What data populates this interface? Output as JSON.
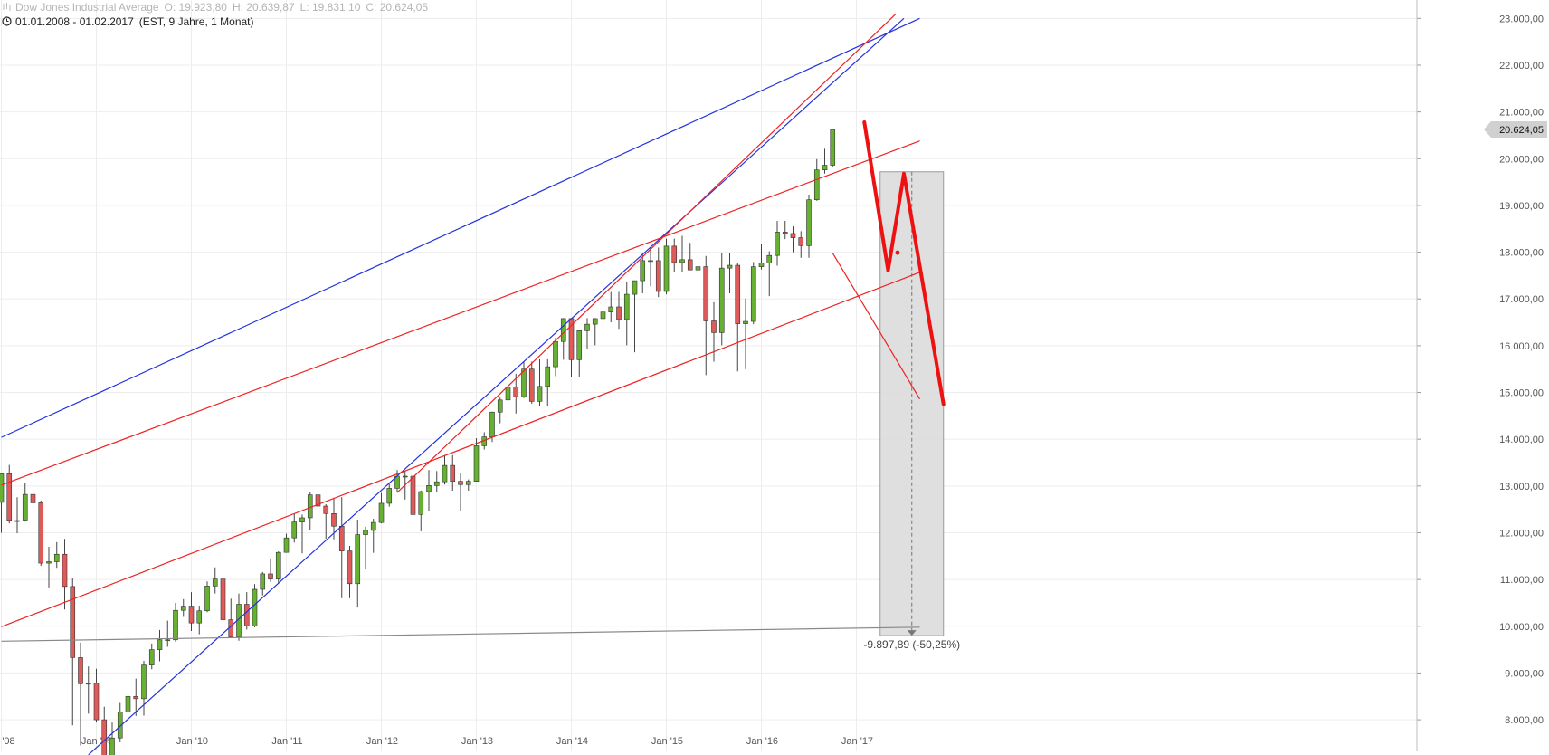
{
  "header": {
    "instrument": "Dow Jones Industrial Average",
    "open": "O: 19.923,80",
    "high": "H: 20.639,87",
    "low": "L: 19.831,10",
    "close": "C: 20.624,05",
    "range": "01.01.2008 - 01.02.2017",
    "meta": "(EST, 9 Jahre, 1 Monat)"
  },
  "chart_data": {
    "type": "candlestick",
    "xlabel": "",
    "ylabel": "",
    "grid": true,
    "x_tick_labels": [
      "'08",
      "Jan '09",
      "Jan '10",
      "Jan '11",
      "Jan '12",
      "Jan '13",
      "Jan '14",
      "Jan '15",
      "Jan '16",
      "Jan '17"
    ],
    "y_tick_labels": [
      "8.000,00",
      "9.000,00",
      "10.000,00",
      "11.000,00",
      "12.000,00",
      "13.000,00",
      "14.000,00",
      "15.000,00",
      "16.000,00",
      "17.000,00",
      "18.000,00",
      "19.000,00",
      "20.000,00",
      "21.000,00",
      "22.000,00",
      "23.000,00"
    ],
    "ylim": [
      7750,
      23200
    ],
    "last_price": 20624.05,
    "last_price_label": "20.624,05",
    "measurement_label": "-9.897,89 (-50,25%)",
    "up_color": "#66b032",
    "down_color": "#e05a5a",
    "candles": [
      [
        12650,
        13280,
        12000,
        13260
      ],
      [
        13260,
        13450,
        12200,
        12265
      ],
      [
        12260,
        12760,
        11990,
        12260
      ],
      [
        12270,
        13060,
        12240,
        12820
      ],
      [
        12820,
        13140,
        12580,
        12640
      ],
      [
        12640,
        12690,
        11290,
        11350
      ],
      [
        11350,
        11700,
        10830,
        11380
      ],
      [
        11380,
        11800,
        11250,
        11540
      ],
      [
        11540,
        11870,
        10360,
        10850
      ],
      [
        10850,
        11030,
        7880,
        9330
      ],
      [
        9330,
        9650,
        7450,
        8770
      ],
      [
        8770,
        9140,
        8130,
        8780
      ],
      [
        8780,
        9090,
        7940,
        8000
      ],
      [
        8000,
        8280,
        6460,
        7060
      ],
      [
        7060,
        7940,
        6470,
        7610
      ],
      [
        7610,
        8360,
        7520,
        8170
      ],
      [
        8170,
        8880,
        8160,
        8500
      ],
      [
        8500,
        8880,
        8080,
        8450
      ],
      [
        8450,
        9260,
        8090,
        9170
      ],
      [
        9170,
        9630,
        9080,
        9500
      ],
      [
        9500,
        9920,
        9250,
        9710
      ],
      [
        9710,
        10120,
        9560,
        9710
      ],
      [
        9710,
        10500,
        9670,
        10340
      ],
      [
        10340,
        10580,
        10200,
        10430
      ],
      [
        10430,
        10730,
        9900,
        10070
      ],
      [
        10070,
        10440,
        9830,
        10330
      ],
      [
        10330,
        10960,
        10300,
        10860
      ],
      [
        10860,
        11260,
        10700,
        11010
      ],
      [
        11010,
        11300,
        9760,
        10140
      ],
      [
        10140,
        10590,
        9760,
        9770
      ],
      [
        9770,
        10700,
        9690,
        10470
      ],
      [
        10470,
        10730,
        9930,
        10010
      ],
      [
        10010,
        10900,
        9980,
        10790
      ],
      [
        10790,
        11160,
        10660,
        11120
      ],
      [
        11120,
        11450,
        10950,
        11010
      ],
      [
        11010,
        11600,
        10930,
        11580
      ],
      [
        11580,
        11980,
        11580,
        11890
      ],
      [
        11890,
        12400,
        11790,
        12230
      ],
      [
        12230,
        12390,
        11560,
        12320
      ],
      [
        12320,
        12880,
        12060,
        12810
      ],
      [
        12810,
        12880,
        12110,
        12570
      ],
      [
        12570,
        12610,
        11870,
        12410
      ],
      [
        12410,
        12750,
        11860,
        12140
      ],
      [
        12140,
        12760,
        10600,
        11610
      ],
      [
        11610,
        11720,
        10600,
        10910
      ],
      [
        10910,
        12280,
        10400,
        11960
      ],
      [
        11960,
        12130,
        11230,
        12050
      ],
      [
        12050,
        12300,
        11570,
        12220
      ],
      [
        12220,
        12850,
        12200,
        12630
      ],
      [
        12630,
        13050,
        12560,
        12950
      ],
      [
        12950,
        13340,
        12880,
        13210
      ],
      [
        13210,
        13330,
        12710,
        13210
      ],
      [
        13210,
        13340,
        12030,
        12390
      ],
      [
        12390,
        12900,
        12030,
        12880
      ],
      [
        12880,
        13340,
        12470,
        13010
      ],
      [
        13010,
        13320,
        12880,
        13090
      ],
      [
        13090,
        13660,
        13030,
        13440
      ],
      [
        13440,
        13660,
        12900,
        13100
      ],
      [
        13100,
        13280,
        12470,
        13030
      ],
      [
        13030,
        13140,
        12900,
        13100
      ],
      [
        13100,
        14020,
        13100,
        13860
      ],
      [
        13860,
        14150,
        13780,
        14050
      ],
      [
        14050,
        14590,
        13940,
        14580
      ],
      [
        14580,
        14890,
        14340,
        14840
      ],
      [
        14840,
        15540,
        14710,
        15120
      ],
      [
        15120,
        15400,
        14550,
        14910
      ],
      [
        14910,
        15660,
        14880,
        15500
      ],
      [
        15500,
        15660,
        14760,
        14810
      ],
      [
        14810,
        15710,
        14720,
        15130
      ],
      [
        15130,
        15710,
        14720,
        15550
      ],
      [
        15550,
        16170,
        15350,
        16090
      ],
      [
        16090,
        16590,
        15700,
        16580
      ],
      [
        16580,
        16590,
        15340,
        15700
      ],
      [
        15700,
        16320,
        15340,
        16320
      ],
      [
        16320,
        16590,
        15940,
        16460
      ],
      [
        16460,
        16590,
        16010,
        16580
      ],
      [
        16580,
        16740,
        16330,
        16720
      ],
      [
        16720,
        17150,
        16500,
        16830
      ],
      [
        16830,
        17150,
        16360,
        16560
      ],
      [
        16560,
        17370,
        16010,
        17100
      ],
      [
        17100,
        17280,
        15860,
        17390
      ],
      [
        17390,
        17990,
        17120,
        17820
      ],
      [
        17820,
        18110,
        17270,
        17820
      ],
      [
        17820,
        18100,
        17040,
        17160
      ],
      [
        17160,
        18290,
        17100,
        18130
      ],
      [
        18130,
        18290,
        17580,
        17780
      ],
      [
        17780,
        18350,
        17580,
        17840
      ],
      [
        17840,
        18200,
        17640,
        17620
      ],
      [
        17620,
        18130,
        17470,
        17690
      ],
      [
        17690,
        17920,
        15370,
        16530
      ],
      [
        16530,
        16930,
        15660,
        16280
      ],
      [
        16280,
        17980,
        16010,
        17660
      ],
      [
        17660,
        17980,
        17120,
        17720
      ],
      [
        17720,
        17770,
        15450,
        16470
      ],
      [
        16470,
        17010,
        15500,
        16520
      ],
      [
        16520,
        17790,
        16460,
        17690
      ],
      [
        17690,
        18170,
        17630,
        17770
      ],
      [
        17770,
        18020,
        17060,
        17930
      ],
      [
        17930,
        18670,
        17710,
        18430
      ],
      [
        18430,
        18670,
        18280,
        18400
      ],
      [
        18400,
        18550,
        18000,
        18310
      ],
      [
        18310,
        18450,
        17880,
        18140
      ],
      [
        18140,
        19230,
        17880,
        19120
      ],
      [
        19120,
        19990,
        19100,
        19760
      ],
      [
        19760,
        20210,
        19680,
        19860
      ],
      [
        19860,
        20640,
        19830,
        20624
      ]
    ],
    "lines": [
      {
        "color": "#2233dd",
        "points": [
          [
            "2008-01",
            14040
          ],
          [
            "2017-09",
            23000
          ]
        ]
      },
      {
        "color": "#2233dd",
        "points": [
          [
            "2008-12",
            7250
          ],
          [
            "2017-07",
            23000
          ]
        ]
      },
      {
        "color": "#ee2222",
        "points": [
          [
            "2008-01",
            13020
          ],
          [
            "2017-09",
            20380
          ]
        ]
      },
      {
        "color": "#ee2222",
        "points": [
          [
            "2008-01",
            9990
          ],
          [
            "2017-09",
            17570
          ]
        ]
      },
      {
        "color": "#ee2222",
        "points": [
          [
            "2016-10",
            17980
          ],
          [
            "2017-09",
            14860
          ]
        ]
      },
      {
        "color": "#ee2222",
        "points": [
          [
            "2012-03",
            12860
          ],
          [
            "2017-06",
            23100
          ]
        ]
      },
      {
        "color": "#888888",
        "points": [
          [
            "2008-01",
            9680
          ],
          [
            "2017-09",
            9980
          ]
        ]
      }
    ],
    "projection": {
      "color": "#ee1111",
      "points": [
        [
          "2017-02",
          20780
        ],
        [
          "2017-05",
          17610
        ],
        [
          "2017-07",
          19680
        ],
        [
          "2017-12",
          14750
        ]
      ],
      "dot": [
        "2017-07",
        17990
      ]
    },
    "measurement_box": {
      "from": "2017-04",
      "to": "2017-12",
      "top": 19720,
      "bottom": 9800,
      "arrow_at": "2017-08"
    }
  }
}
